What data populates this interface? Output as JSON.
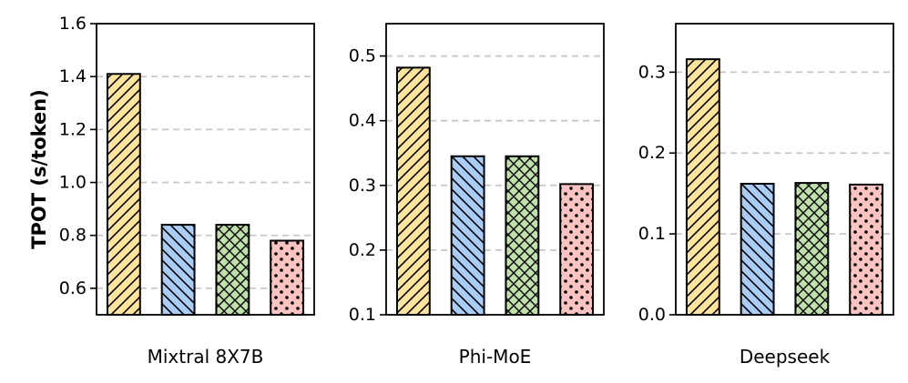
{
  "chart_data": {
    "type": "bar",
    "ylabel": "TPOT (s/token)",
    "series_styles": [
      {
        "fill": "#fde49a",
        "hatch": "diagonal-forward"
      },
      {
        "fill": "#a9cdf7",
        "hatch": "diagonal-backward"
      },
      {
        "fill": "#bfe0a8",
        "hatch": "crosshatch"
      },
      {
        "fill": "#fbc3c0",
        "hatch": "dots"
      }
    ],
    "panels": [
      {
        "xlabel": "Mixtral 8X7B",
        "ylim": [
          0.5,
          1.6
        ],
        "ticks": [
          0.6,
          0.8,
          1.0,
          1.2,
          1.4,
          1.6
        ],
        "tick_labels": [
          "0.6",
          "0.8",
          "1.0",
          "1.2",
          "1.4",
          "1.6"
        ],
        "values": [
          1.41,
          0.84,
          0.84,
          0.78
        ]
      },
      {
        "xlabel": "Phi-MoE",
        "ylim": [
          0.1,
          0.55
        ],
        "ticks": [
          0.1,
          0.2,
          0.3,
          0.4,
          0.5
        ],
        "tick_labels": [
          "0.1",
          "0.2",
          "0.3",
          "0.4",
          "0.5"
        ],
        "values": [
          0.482,
          0.345,
          0.345,
          0.302
        ]
      },
      {
        "xlabel": "Deepseek",
        "ylim": [
          0.0,
          0.36
        ],
        "ticks": [
          0.0,
          0.1,
          0.2,
          0.3
        ],
        "tick_labels": [
          "0.0",
          "0.1",
          "0.2",
          "0.3"
        ],
        "values": [
          0.316,
          0.162,
          0.163,
          0.161
        ]
      }
    ]
  }
}
